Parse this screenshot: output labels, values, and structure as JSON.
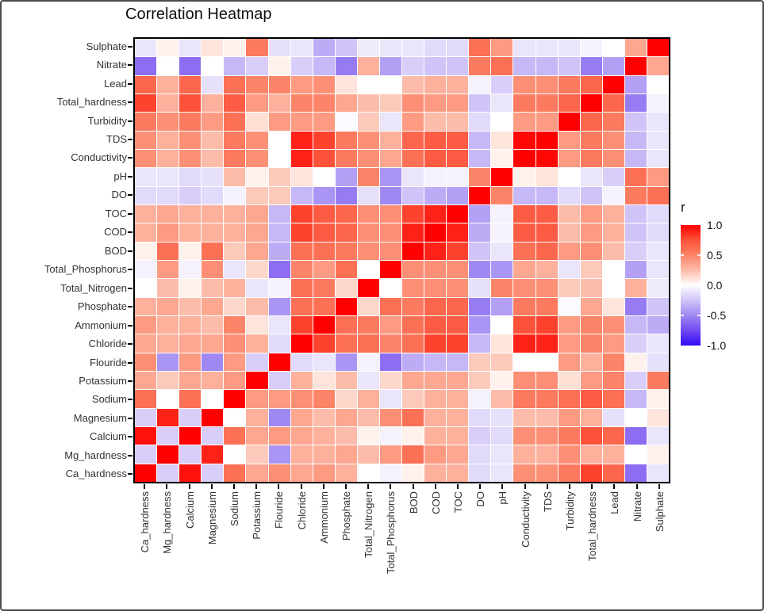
{
  "title": "Correlation Heatmap",
  "legend": {
    "title": "r",
    "tick_labels": [
      "1.0",
      "0.5",
      "0.0",
      "-0.5",
      "-1.0"
    ],
    "tick_values": [
      1.0,
      0.5,
      0.0,
      -0.5,
      -1.0
    ]
  },
  "colors": {
    "high": "#ff0000",
    "mid": "#ffffff",
    "low": "#330af5",
    "panel_border": "#000000",
    "axis_text": "#333333",
    "scale_anchors": [
      [
        1.0,
        [
          255,
          0,
          0
        ]
      ],
      [
        0.75,
        [
          252,
          82,
          58
        ]
      ],
      [
        0.5,
        [
          252,
          132,
          104
        ]
      ],
      [
        0.25,
        [
          253,
          188,
          170
        ]
      ],
      [
        0.1,
        [
          254,
          228,
          219
        ]
      ],
      [
        0.0,
        [
          255,
          255,
          255
        ]
      ],
      [
        -0.1,
        [
          235,
          229,
          251
        ]
      ],
      [
        -0.25,
        [
          208,
          195,
          248
        ]
      ],
      [
        -0.5,
        [
          160,
          136,
          243
        ]
      ],
      [
        -0.75,
        [
          113,
          72,
          241
        ]
      ],
      [
        -1.0,
        [
          51,
          10,
          245
        ]
      ]
    ]
  },
  "chart_data": {
    "type": "heatmap",
    "title": "Correlation Heatmap",
    "legend_title": "r",
    "value_range": [
      -1,
      1
    ],
    "x_axis_order_left_to_right": [
      "Ca_hardness",
      "Mg_hardness",
      "Calcium",
      "Magnesium",
      "Sodium",
      "Potassium",
      "Flouride",
      "Chloride",
      "Ammonium",
      "Phosphate",
      "Total_Nitrogen",
      "Total_Phosphorus",
      "BOD",
      "COD",
      "TOC",
      "DO",
      "pH",
      "Conductivity",
      "TDS",
      "Turbidity",
      "Total_hardness",
      "Lead",
      "Nitrate",
      "Sulphate"
    ],
    "y_axis_order_top_to_bottom": [
      "Sulphate",
      "Nitrate",
      "Lead",
      "Total_hardness",
      "Turbidity",
      "TDS",
      "Conductivity",
      "pH",
      "DO",
      "TOC",
      "COD",
      "BOD",
      "Total_Phosphorus",
      "Total_Nitrogen",
      "Phosphate",
      "Ammonium",
      "Chloride",
      "Flouride",
      "Potassium",
      "Sodium",
      "Magnesium",
      "Calcium",
      "Mg_hardness",
      "Ca_hardness"
    ],
    "variables": [
      "Ca_hardness",
      "Mg_hardness",
      "Calcium",
      "Magnesium",
      "Sodium",
      "Potassium",
      "Flouride",
      "Chloride",
      "Ammonium",
      "Phosphate",
      "Total_Nitrogen",
      "Total_Phosphorus",
      "BOD",
      "COD",
      "TOC",
      "DO",
      "pH",
      "Conductivity",
      "TDS",
      "Turbidity",
      "Total_hardness",
      "Lead",
      "Nitrate",
      "Sulphate"
    ],
    "matrix": [
      [
        1,
        -0.2,
        0.95,
        -0.2,
        0.6,
        0.35,
        0.45,
        0.35,
        0.4,
        0.3,
        0,
        -0.05,
        0.05,
        0.3,
        0.3,
        -0.15,
        -0.1,
        0.45,
        0.45,
        0.55,
        0.8,
        0.65,
        -0.6,
        -0.1
      ],
      [
        -0.2,
        1,
        -0.2,
        0.9,
        0,
        0.2,
        -0.45,
        0.3,
        0.3,
        0.35,
        0.25,
        0.4,
        0.6,
        0.4,
        0.35,
        -0.15,
        -0.1,
        0.3,
        0.3,
        0.45,
        0.3,
        0.3,
        0,
        0.05
      ],
      [
        0.95,
        -0.2,
        1,
        -0.2,
        0.6,
        0.35,
        0.4,
        0.35,
        0.3,
        0.25,
        0.05,
        -0.05,
        0.05,
        0.3,
        0.3,
        -0.2,
        -0.15,
        0.45,
        0.45,
        0.55,
        0.75,
        0.65,
        -0.6,
        -0.1
      ],
      [
        -0.2,
        0.9,
        -0.2,
        1,
        0,
        0.3,
        -0.5,
        0.35,
        0.25,
        0.35,
        0.25,
        0.45,
        0.6,
        0.3,
        0.3,
        -0.15,
        -0.12,
        0.25,
        0.25,
        0.4,
        0.3,
        -0.12,
        0,
        0.1
      ],
      [
        0.6,
        0,
        0.6,
        0,
        1,
        0.4,
        0.4,
        0.45,
        0.5,
        0.15,
        0.3,
        -0.1,
        0.2,
        0.3,
        0.3,
        -0.05,
        0.25,
        0.55,
        0.55,
        0.6,
        0.7,
        0.6,
        -0.3,
        0.05
      ],
      [
        0.35,
        0.2,
        0.35,
        0.3,
        0.4,
        1,
        -0.2,
        0.3,
        0.1,
        0.25,
        -0.1,
        0.15,
        0.35,
        0.35,
        0.35,
        0.2,
        0.05,
        0.45,
        0.45,
        0.12,
        0.4,
        0.5,
        -0.2,
        0.55
      ],
      [
        0.45,
        -0.45,
        0.4,
        -0.5,
        0.4,
        -0.2,
        1,
        -0.15,
        -0.1,
        -0.45,
        -0.05,
        -0.6,
        -0.35,
        -0.3,
        -0.3,
        0.2,
        0.2,
        0,
        0,
        0.4,
        0.3,
        0.5,
        0.05,
        -0.12
      ],
      [
        0.35,
        0.3,
        0.35,
        0.35,
        0.45,
        0.3,
        -0.15,
        1,
        0.8,
        0.6,
        0.6,
        0.5,
        0.6,
        0.8,
        0.8,
        -0.3,
        0.1,
        0.9,
        0.9,
        0.4,
        0.5,
        0.4,
        -0.2,
        -0.1
      ],
      [
        0.4,
        0.3,
        0.3,
        0.25,
        0.5,
        0.1,
        -0.1,
        0.8,
        1,
        0.6,
        0.55,
        0.4,
        0.6,
        0.7,
        0.7,
        -0.45,
        0,
        0.75,
        0.8,
        0.4,
        0.5,
        0.45,
        -0.3,
        -0.35
      ],
      [
        0.3,
        0.35,
        0.25,
        0.35,
        0.15,
        0.25,
        -0.45,
        0.6,
        0.6,
        1,
        0.15,
        0.6,
        0.55,
        0.65,
        0.65,
        -0.55,
        -0.4,
        0.55,
        0.55,
        -0.02,
        0.35,
        0.1,
        -0.55,
        -0.25
      ],
      [
        0,
        0.25,
        0.05,
        0.25,
        0.3,
        -0.1,
        -0.05,
        0.6,
        0.55,
        0.15,
        1,
        0,
        0.45,
        0.45,
        0.45,
        -0.12,
        0.5,
        0.45,
        0.45,
        0.2,
        0.25,
        0,
        0.3,
        -0.08
      ],
      [
        -0.05,
        0.4,
        -0.05,
        0.45,
        -0.1,
        0.15,
        -0.6,
        0.5,
        0.4,
        0.6,
        0,
        1,
        0.45,
        0.45,
        0.45,
        -0.5,
        -0.45,
        0.35,
        0.3,
        -0.1,
        0.2,
        0,
        -0.4,
        -0.1
      ],
      [
        0.05,
        0.6,
        0.05,
        0.6,
        0.2,
        0.35,
        -0.35,
        0.6,
        0.6,
        0.55,
        0.45,
        0.45,
        1,
        0.9,
        0.8,
        -0.25,
        -0.1,
        0.6,
        0.65,
        0.4,
        0.45,
        0.25,
        -0.2,
        -0.1
      ],
      [
        0.3,
        0.4,
        0.3,
        0.3,
        0.3,
        0.35,
        -0.3,
        0.8,
        0.7,
        0.65,
        0.45,
        0.45,
        0.9,
        1,
        0.9,
        -0.35,
        -0.05,
        0.7,
        0.7,
        0.25,
        0.4,
        0.3,
        -0.25,
        -0.15
      ],
      [
        0.3,
        0.35,
        0.3,
        0.3,
        0.3,
        0.35,
        -0.3,
        0.8,
        0.7,
        0.65,
        0.45,
        0.45,
        0.8,
        0.9,
        1,
        -0.4,
        -0.05,
        0.7,
        0.7,
        0.25,
        0.4,
        0.3,
        -0.25,
        -0.15
      ],
      [
        -0.15,
        -0.15,
        -0.2,
        -0.15,
        -0.05,
        0.2,
        0.2,
        -0.3,
        -0.45,
        -0.55,
        -0.12,
        -0.5,
        -0.25,
        -0.35,
        -0.4,
        1,
        0.5,
        -0.3,
        -0.3,
        -0.15,
        -0.25,
        -0.05,
        0.55,
        0.6
      ],
      [
        -0.1,
        -0.1,
        -0.15,
        -0.12,
        0.25,
        0.05,
        0.2,
        0.1,
        0,
        -0.4,
        0.5,
        -0.45,
        -0.1,
        -0.05,
        -0.05,
        0.5,
        1,
        0.05,
        0.1,
        0,
        -0.1,
        -0.2,
        0.6,
        0.4
      ],
      [
        0.45,
        0.3,
        0.45,
        0.25,
        0.55,
        0.45,
        0,
        0.9,
        0.75,
        0.55,
        0.45,
        0.35,
        0.6,
        0.7,
        0.7,
        -0.3,
        0.05,
        1,
        0.98,
        0.4,
        0.55,
        0.45,
        -0.3,
        -0.1
      ],
      [
        0.45,
        0.3,
        0.45,
        0.25,
        0.55,
        0.45,
        0,
        0.9,
        0.8,
        0.55,
        0.45,
        0.3,
        0.65,
        0.7,
        0.7,
        -0.3,
        0.1,
        0.98,
        1,
        0.4,
        0.55,
        0.45,
        -0.3,
        -0.1
      ],
      [
        0.55,
        0.45,
        0.55,
        0.4,
        0.6,
        0.12,
        0.4,
        0.4,
        0.4,
        -0.02,
        0.2,
        -0.1,
        0.4,
        0.25,
        0.25,
        -0.15,
        0,
        0.4,
        0.4,
        1,
        0.65,
        0.55,
        -0.25,
        -0.1
      ],
      [
        0.8,
        0.3,
        0.75,
        0.3,
        0.7,
        0.4,
        0.3,
        0.5,
        0.5,
        0.35,
        0.25,
        0.2,
        0.45,
        0.4,
        0.4,
        -0.25,
        -0.1,
        0.55,
        0.55,
        0.65,
        1,
        0.65,
        -0.55,
        -0.05
      ],
      [
        0.65,
        0.3,
        0.65,
        -0.12,
        0.6,
        0.5,
        0.5,
        0.4,
        0.45,
        0.1,
        0,
        0,
        0.25,
        0.3,
        0.3,
        -0.05,
        -0.2,
        0.45,
        0.45,
        0.55,
        0.65,
        1,
        -0.4,
        0
      ],
      [
        -0.6,
        0,
        -0.6,
        0,
        -0.3,
        -0.2,
        0.05,
        -0.2,
        -0.3,
        -0.55,
        0.3,
        -0.4,
        -0.2,
        -0.25,
        -0.25,
        0.55,
        0.6,
        -0.3,
        -0.3,
        -0.25,
        -0.55,
        -0.4,
        1,
        0.35
      ],
      [
        -0.1,
        0.05,
        -0.1,
        0.1,
        0.05,
        0.55,
        -0.12,
        -0.1,
        -0.35,
        -0.25,
        -0.08,
        -0.1,
        -0.1,
        -0.15,
        -0.15,
        0.6,
        0.4,
        -0.1,
        -0.1,
        -0.1,
        -0.05,
        0,
        0.35,
        1
      ]
    ]
  }
}
